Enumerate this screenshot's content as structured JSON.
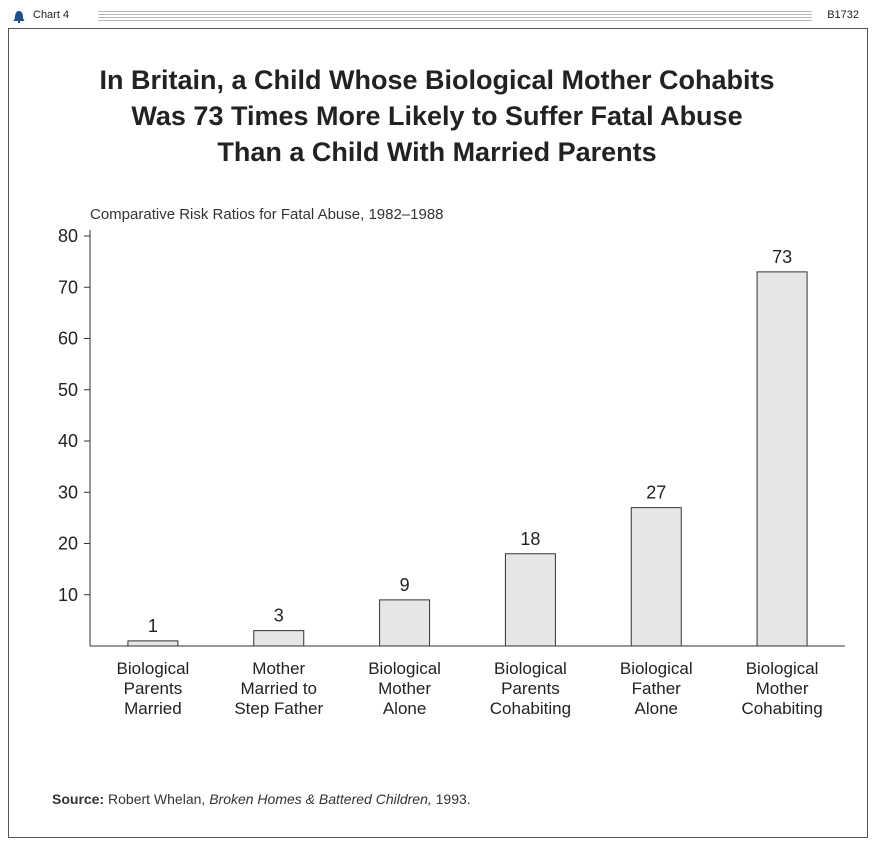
{
  "header": {
    "chart_label": "Chart 4",
    "chart_id": "B1732"
  },
  "title_lines": [
    "In Britain, a Child Whose Biological Mother Cohabits",
    "Was 73 Times More Likely to Suffer Fatal Abuse",
    "Than a Child With Married Parents"
  ],
  "source": {
    "label": "Source:",
    "author": "Robert Whelan,",
    "work": "Broken Homes & Battered Children,",
    "year": "1993."
  },
  "colors": {
    "bar_fill": "#e6e6e6",
    "bar_stroke": "#333333",
    "logo": "#1f4e8c"
  },
  "chart_data": {
    "type": "bar",
    "subtitle": "Comparative Risk Ratios for Fatal Abuse, 1982–1988",
    "categories": [
      [
        "Biological",
        "Parents",
        "Married"
      ],
      [
        "Mother",
        "Married to",
        "Step Father"
      ],
      [
        "Biological",
        "Mother",
        "Alone"
      ],
      [
        "Biological",
        "Parents",
        "Cohabiting"
      ],
      [
        "Biological",
        "Father",
        "Alone"
      ],
      [
        "Biological",
        "Mother",
        "Cohabiting"
      ]
    ],
    "values": [
      1,
      3,
      9,
      18,
      27,
      73
    ],
    "data_labels": [
      "1",
      "3",
      "9",
      "18",
      "27",
      "73"
    ],
    "ylim": [
      0,
      80
    ],
    "yticks": [
      10,
      20,
      30,
      40,
      50,
      60,
      70,
      80
    ],
    "grid": false,
    "legend": "none"
  }
}
